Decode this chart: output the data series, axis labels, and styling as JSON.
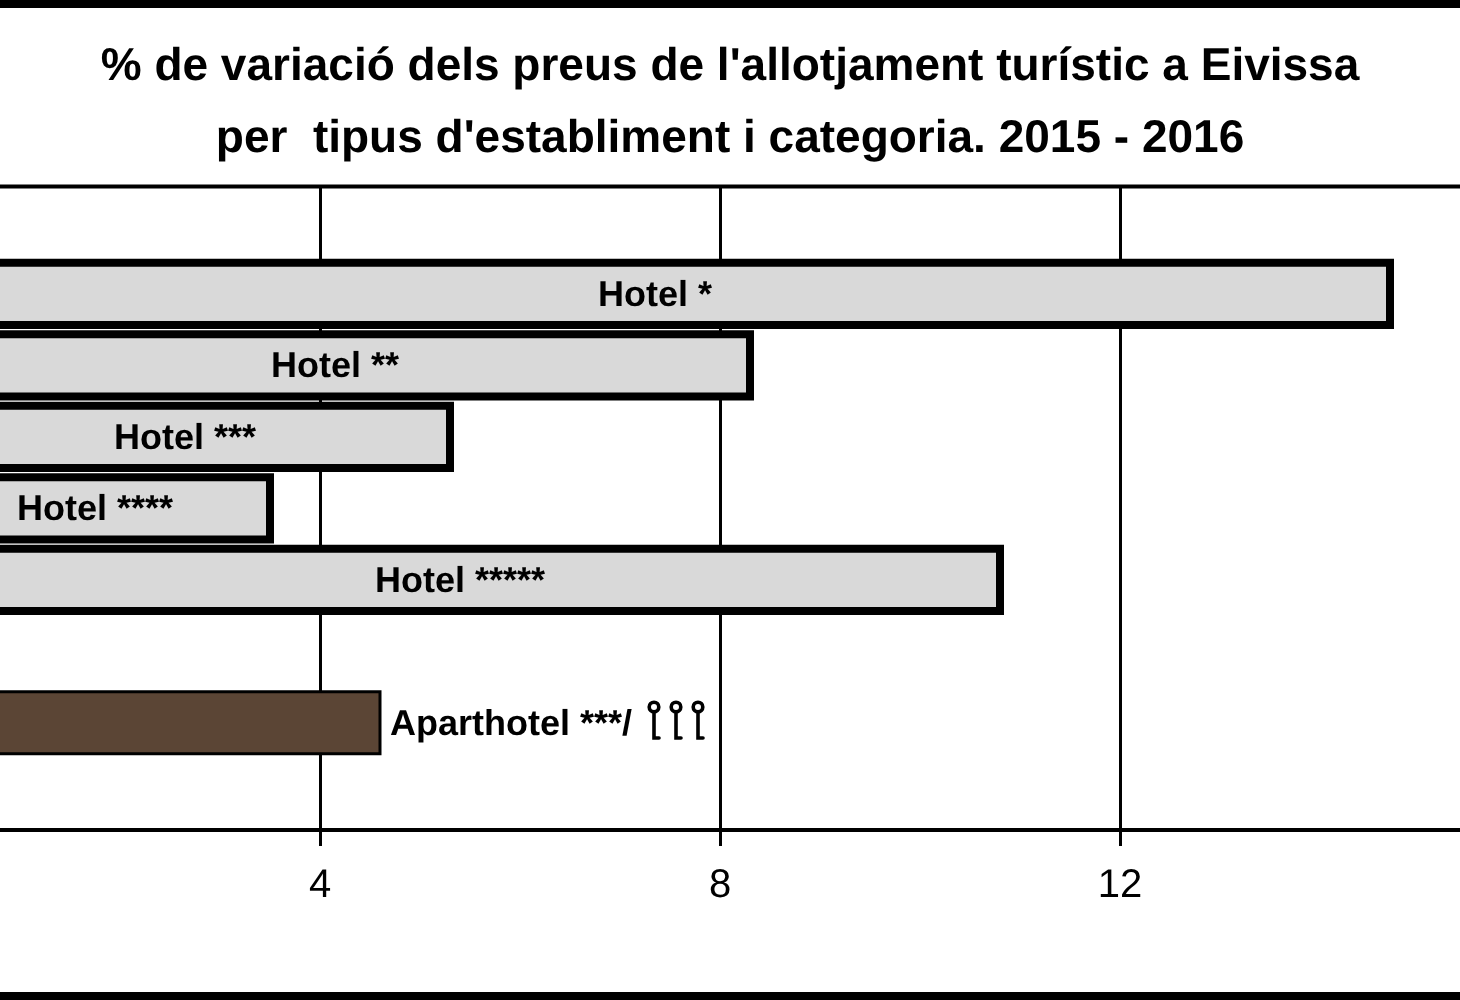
{
  "chart_data": {
    "type": "bar",
    "orientation": "horizontal",
    "title": "% de variació dels preus de l'allotjament turístic a Eivissa per  tipus d'establiment i categoria. 2015 - 2016",
    "categories": [
      null,
      "Hotel *",
      "Hotel **",
      "Hotel ***",
      "Hotel ****",
      "Hotel *****",
      null,
      "Aparthotel ***/",
      null
    ],
    "values": [
      null,
      14.7,
      8.3,
      5.3,
      3.5,
      10.8,
      null,
      4.6,
      null
    ],
    "colors": [
      "#d9d9d9",
      "#d9d9d9",
      "#d9d9d9",
      "#d9d9d9",
      "#d9d9d9",
      "#d9d9d9",
      "#d9d9d9",
      "#5b4535",
      "#d9d9d9"
    ],
    "xlim": [
      0.8,
      15.4
    ],
    "xticks": [
      4,
      8,
      12
    ],
    "grid": "x"
  }
}
